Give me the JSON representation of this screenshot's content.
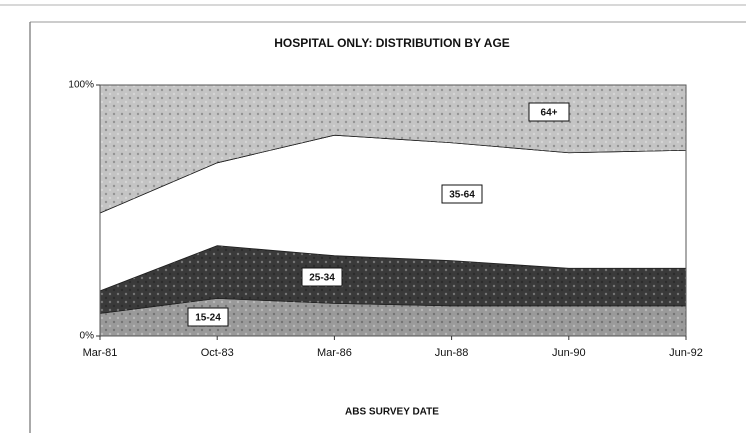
{
  "chart_data": {
    "type": "stacked_area",
    "title": "HOSPITAL ONLY: DISTRIBUTION BY AGE",
    "x_label": "ABS SURVEY DATE",
    "categories": [
      "Mar-81",
      "Oct-83",
      "Mar-86",
      "Jun-88",
      "Jun-90",
      "Jun-92"
    ],
    "series": [
      {
        "name": "15-24",
        "color": "#9a9a9a",
        "values": [
          9,
          15,
          13,
          12,
          12,
          12
        ]
      },
      {
        "name": "25-34",
        "color": "#3a3a3a",
        "values": [
          9,
          21,
          19,
          18,
          15,
          15
        ]
      },
      {
        "name": "35-64",
        "color": "#ffffff",
        "values": [
          31,
          33,
          48,
          47,
          46,
          47
        ]
      },
      {
        "name": "64+",
        "color": "#c4c4c4",
        "values": [
          51,
          31,
          20,
          23,
          27,
          26
        ]
      }
    ],
    "ylim": [
      0,
      100
    ],
    "yticks": [
      {
        "value": 0,
        "label": "0%"
      },
      {
        "value": 100,
        "label": "100%"
      }
    ]
  }
}
